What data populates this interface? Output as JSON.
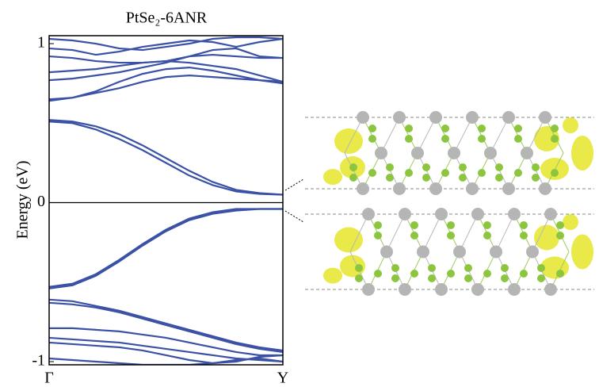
{
  "chart_data": {
    "type": "line",
    "title": "PtSe₂-6ANR",
    "y_label": "Energy (eV)",
    "x": [
      0,
      0.1,
      0.2,
      0.3,
      0.4,
      0.5,
      0.6,
      0.7,
      0.8,
      0.9,
      1
    ],
    "xlim": [
      0,
      1
    ],
    "xticks": [
      {
        "value": 0,
        "label": "Γ"
      },
      {
        "value": 1,
        "label": "Y"
      }
    ],
    "ylim": [
      -1.02,
      1.05
    ],
    "yticks": [
      1,
      0,
      -1
    ],
    "hlines": [
      0
    ],
    "series": [
      {
        "color": "#3a51a6",
        "values": [
          0.51,
          0.5,
          0.46,
          0.4,
          0.33,
          0.25,
          0.17,
          0.11,
          0.07,
          0.055,
          0.05
        ]
      },
      {
        "color": "#3a51a6",
        "values": [
          0.52,
          0.51,
          0.48,
          0.43,
          0.36,
          0.28,
          0.2,
          0.13,
          0.08,
          0.06,
          0.05
        ]
      },
      {
        "color": "#3a51a6",
        "values": [
          0.65,
          0.66,
          0.69,
          0.72,
          0.76,
          0.79,
          0.8,
          0.79,
          0.78,
          0.77,
          0.76
        ]
      },
      {
        "color": "#3a51a6",
        "values": [
          0.64,
          0.66,
          0.7,
          0.76,
          0.81,
          0.84,
          0.85,
          0.83,
          0.8,
          0.77,
          0.75
        ]
      },
      {
        "color": "#3a51a6",
        "values": [
          0.77,
          0.78,
          0.8,
          0.82,
          0.85,
          0.88,
          0.92,
          0.93,
          0.92,
          0.91,
          0.91
        ]
      },
      {
        "color": "#3a51a6",
        "values": [
          0.82,
          0.83,
          0.84,
          0.86,
          0.88,
          0.89,
          0.88,
          0.86,
          0.84,
          0.8,
          0.76
        ]
      },
      {
        "color": "#3a51a6",
        "values": [
          0.92,
          0.91,
          0.89,
          0.88,
          0.88,
          0.89,
          0.92,
          0.96,
          0.97,
          0.92,
          0.91
        ]
      },
      {
        "color": "#3a51a6",
        "values": [
          0.97,
          0.96,
          0.93,
          0.95,
          0.98,
          1.0,
          1.02,
          1.01,
          0.98,
          1.01,
          1.03
        ]
      },
      {
        "color": "#3a51a6",
        "values": [
          1.03,
          1.02,
          1.0,
          0.97,
          0.96,
          0.98,
          1.0,
          1.03,
          1.04,
          1.04,
          1.03
        ]
      },
      {
        "color": "#3a51a6",
        "values": [
          -0.53,
          -0.51,
          -0.45,
          -0.36,
          -0.26,
          -0.17,
          -0.1,
          -0.06,
          -0.04,
          -0.04,
          -0.04
        ]
      },
      {
        "color": "#3a51a6",
        "values": [
          -0.54,
          -0.52,
          -0.46,
          -0.37,
          -0.27,
          -0.18,
          -0.11,
          -0.07,
          -0.05,
          -0.04,
          -0.04
        ]
      },
      {
        "color": "#3a51a6",
        "values": [
          -0.61,
          -0.62,
          -0.65,
          -0.68,
          -0.72,
          -0.76,
          -0.8,
          -0.84,
          -0.88,
          -0.91,
          -0.93
        ]
      },
      {
        "color": "#3a51a6",
        "values": [
          -0.63,
          -0.64,
          -0.66,
          -0.69,
          -0.73,
          -0.77,
          -0.81,
          -0.85,
          -0.89,
          -0.92,
          -0.94
        ]
      },
      {
        "color": "#3a51a6",
        "values": [
          -0.79,
          -0.79,
          -0.8,
          -0.81,
          -0.83,
          -0.85,
          -0.88,
          -0.91,
          -0.94,
          -0.96,
          -0.96
        ]
      },
      {
        "color": "#3a51a6",
        "values": [
          -0.85,
          -0.86,
          -0.87,
          -0.88,
          -0.9,
          -0.92,
          -0.94,
          -0.96,
          -0.98,
          -0.99,
          -1.0
        ]
      },
      {
        "color": "#3a51a6",
        "values": [
          -0.88,
          -0.89,
          -0.9,
          -0.91,
          -0.93,
          -0.96,
          -0.99,
          -1.01,
          -1.0,
          -0.97,
          -0.96
        ]
      },
      {
        "color": "#3a51a6",
        "values": [
          -0.98,
          -0.99,
          -1.0,
          -1.01,
          -1.02,
          -1.02,
          -1.02,
          -1.01,
          -0.99,
          -0.98,
          -1.0
        ]
      }
    ]
  }
}
